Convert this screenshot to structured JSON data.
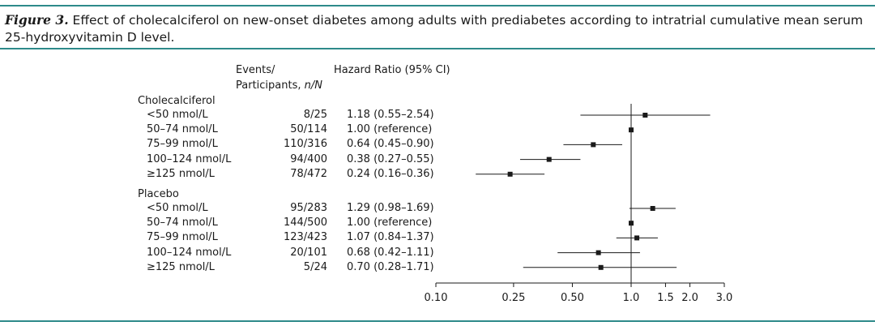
{
  "figure": {
    "label": "Figure 3.",
    "caption": "Effect of cholecalciferol on new-onset diabetes among adults with prediabetes according to intratrial cumulative mean serum 25-hydroxyvitamin D level."
  },
  "headers": {
    "events_line1": "Events/",
    "events_line2": "Participants,",
    "events_nN": "n/N",
    "hazard": "Hazard Ratio (95% CI)"
  },
  "colors": {
    "rule": "#2e8a8a",
    "ink": "#1a1a1a"
  },
  "chart_data": {
    "type": "forest",
    "xscale": "log",
    "xlim": [
      0.1,
      3.0
    ],
    "xticks": [
      0.1,
      0.25,
      0.5,
      1.0,
      1.5,
      2.0,
      3.0
    ],
    "xtick_labels": [
      "0.10",
      "0.25",
      "0.50",
      "1.0",
      "1.5",
      "2.0",
      "3.0"
    ],
    "reference_line": 1.0,
    "groups": [
      {
        "name": "Cholecalciferol",
        "rows": [
          {
            "label": "<50 nmol/L",
            "events": "8/25",
            "hr_text": "1.18 (0.55–2.54)",
            "hr": 1.18,
            "lo": 0.55,
            "hi": 2.54
          },
          {
            "label": "50–74 nmol/L",
            "events": "50/114",
            "hr_text": "1.00 (reference)",
            "hr": 1.0,
            "lo": null,
            "hi": null
          },
          {
            "label": "75–99 nmol/L",
            "events": "110/316",
            "hr_text": "0.64 (0.45–0.90)",
            "hr": 0.64,
            "lo": 0.45,
            "hi": 0.9
          },
          {
            "label": "100–124 nmol/L",
            "events": "94/400",
            "hr_text": "0.38 (0.27–0.55)",
            "hr": 0.38,
            "lo": 0.27,
            "hi": 0.55
          },
          {
            "label": "≥125 nmol/L",
            "events": "78/472",
            "hr_text": "0.24 (0.16–0.36)",
            "hr": 0.24,
            "lo": 0.16,
            "hi": 0.36
          }
        ]
      },
      {
        "name": "Placebo",
        "rows": [
          {
            "label": "<50 nmol/L",
            "events": "95/283",
            "hr_text": "1.29 (0.98–1.69)",
            "hr": 1.29,
            "lo": 0.98,
            "hi": 1.69
          },
          {
            "label": "50–74 nmol/L",
            "events": "144/500",
            "hr_text": "1.00 (reference)",
            "hr": 1.0,
            "lo": null,
            "hi": null
          },
          {
            "label": "75–99 nmol/L",
            "events": "123/423",
            "hr_text": "1.07 (0.84–1.37)",
            "hr": 1.07,
            "lo": 0.84,
            "hi": 1.37
          },
          {
            "label": "100–124 nmol/L",
            "events": "20/101",
            "hr_text": "0.68 (0.42–1.11)",
            "hr": 0.68,
            "lo": 0.42,
            "hi": 1.11
          },
          {
            "label": "≥125 nmol/L",
            "events": "5/24",
            "hr_text": "0.70 (0.28–1.71)",
            "hr": 0.7,
            "lo": 0.28,
            "hi": 1.71
          }
        ]
      }
    ]
  }
}
